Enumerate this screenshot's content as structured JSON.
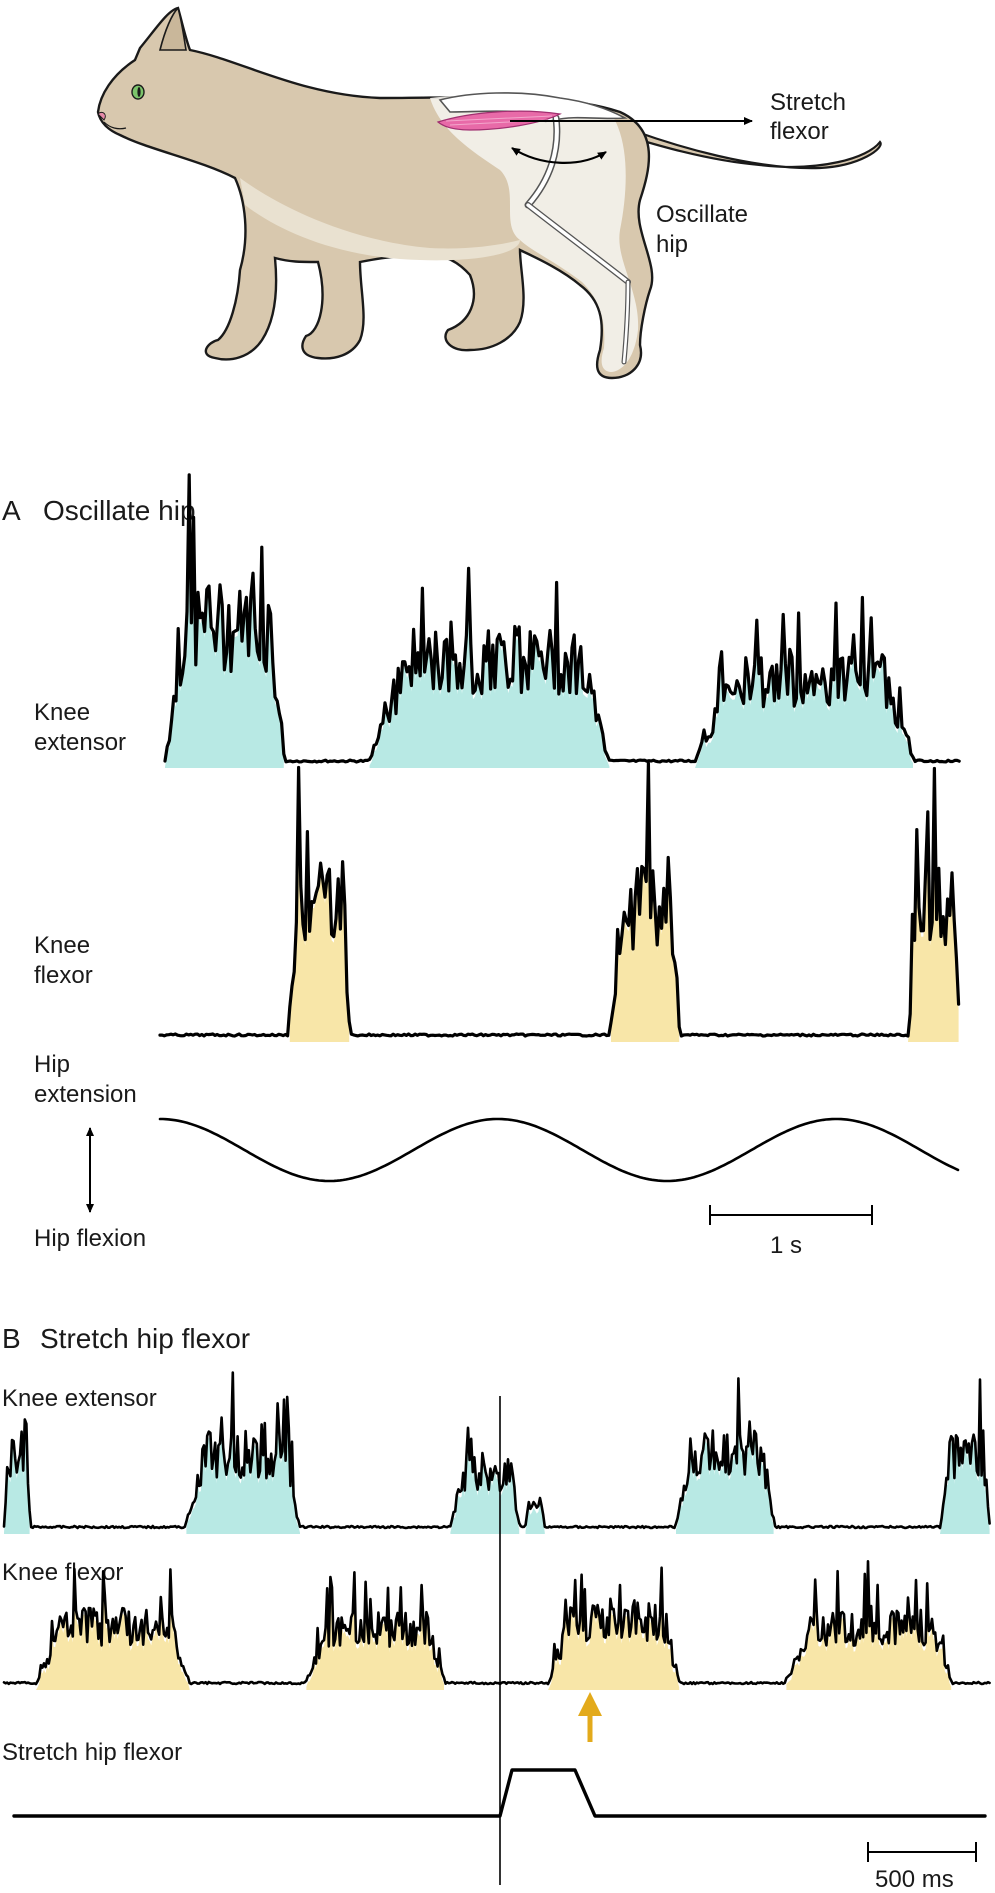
{
  "illustration": {
    "stretch_label": [
      "Stretch",
      "flexor"
    ],
    "oscillate_label": [
      "Oscillate",
      "hip"
    ]
  },
  "panel_a": {
    "letter": "A",
    "title": "Oscillate hip",
    "knee_extensor_label": [
      "Knee",
      "extensor"
    ],
    "knee_flexor_label": [
      "Knee",
      "flexor"
    ],
    "hip_extension_label": [
      "Hip",
      "extension"
    ],
    "hip_flexion_label": "Hip flexion",
    "scale_label": "1 s"
  },
  "panel_b": {
    "letter": "B",
    "title": "Stretch hip flexor",
    "knee_extensor_label": "Knee extensor",
    "knee_flexor_label": "Knee flexor",
    "stretch_label": "Stretch hip flexor",
    "scale_label": "500 ms"
  },
  "colors": {
    "extensor_fill": "#b8e9e4",
    "flexor_fill": "#f8e6a8",
    "muscle": "#e86aa8",
    "arrow_marker": "#e3aa1b",
    "cat_body": "#d8c8ae"
  }
}
